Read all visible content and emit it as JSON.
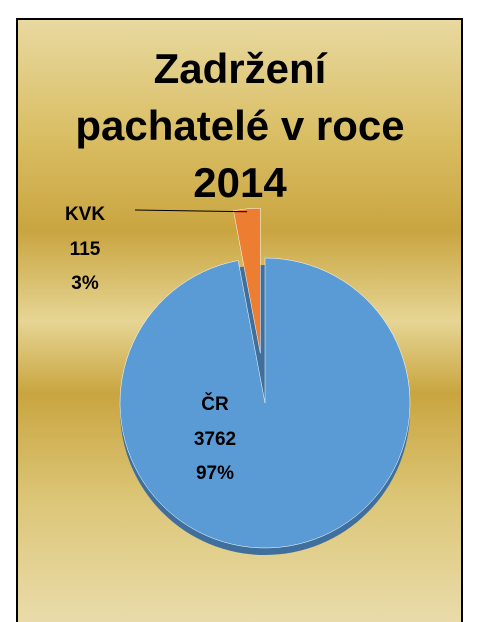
{
  "chart_data": {
    "type": "pie",
    "title": "Zadržení pachatelé v roce 2014",
    "categories": [
      "ČR",
      "KVK"
    ],
    "values": [
      3762,
      115
    ],
    "percent_labels": [
      "97%",
      "3%"
    ],
    "colors": [
      "#5b9bd5",
      "#ed7d31"
    ]
  }
}
